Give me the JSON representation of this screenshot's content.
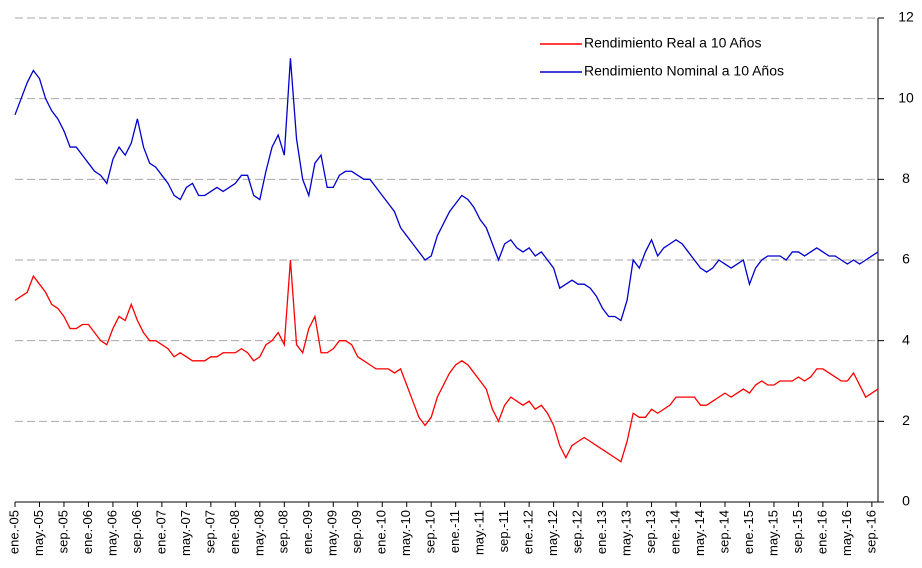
{
  "chart_data": {
    "type": "line",
    "categories": [
      "ene.-05",
      null,
      null,
      null,
      "may.-05",
      null,
      null,
      null,
      "sep.-05",
      null,
      null,
      null,
      "ene.-06",
      null,
      null,
      null,
      "may.-06",
      null,
      null,
      null,
      "sep.-06",
      null,
      null,
      null,
      "ene.-07",
      null,
      null,
      null,
      "may.-07",
      null,
      null,
      null,
      "sep.-07",
      null,
      null,
      null,
      "ene.-08",
      null,
      null,
      null,
      "may.-08",
      null,
      null,
      null,
      "sep.-08",
      null,
      null,
      null,
      "ene.-09",
      null,
      null,
      null,
      "may.-09",
      null,
      null,
      null,
      "sep.-09",
      null,
      null,
      null,
      "ene.-10",
      null,
      null,
      null,
      "may.-10",
      null,
      null,
      null,
      "sep.-10",
      null,
      null,
      null,
      "ene.-11",
      null,
      null,
      null,
      "may.-11",
      null,
      null,
      null,
      "sep.-11",
      null,
      null,
      null,
      "ene.-12",
      null,
      null,
      null,
      "may.-12",
      null,
      null,
      null,
      "sep.-12",
      null,
      null,
      null,
      "ene.-13",
      null,
      null,
      null,
      "may.-13",
      null,
      null,
      null,
      "sep.-13",
      null,
      null,
      null,
      "ene.-14",
      null,
      null,
      null,
      "may.-14",
      null,
      null,
      null,
      "sep.-14",
      null,
      null,
      null,
      "ene.-15",
      null,
      null,
      null,
      "may.-15",
      null,
      null,
      null,
      "sep.-15",
      null,
      null,
      null,
      "ene.-16",
      null,
      null,
      null,
      "may.-16",
      null,
      null,
      null,
      "sep.-16",
      null
    ],
    "series": [
      {
        "name": "Rendimiento Real a 10 Años",
        "color": "#ff0000",
        "values": [
          5.0,
          5.1,
          5.2,
          5.6,
          5.4,
          5.2,
          4.9,
          4.8,
          4.6,
          4.3,
          4.3,
          4.4,
          4.4,
          4.2,
          4.0,
          3.9,
          4.3,
          4.6,
          4.5,
          4.9,
          4.5,
          4.2,
          4.0,
          4.0,
          3.9,
          3.8,
          3.6,
          3.7,
          3.6,
          3.5,
          3.5,
          3.5,
          3.6,
          3.6,
          3.7,
          3.7,
          3.7,
          3.8,
          3.7,
          3.5,
          3.6,
          3.9,
          4.0,
          4.2,
          3.9,
          6.0,
          3.9,
          3.7,
          4.3,
          4.6,
          3.7,
          3.7,
          3.8,
          4.0,
          4.0,
          3.9,
          3.6,
          3.5,
          3.4,
          3.3,
          3.3,
          3.3,
          3.2,
          3.3,
          2.9,
          2.5,
          2.1,
          1.9,
          2.1,
          2.6,
          2.9,
          3.2,
          3.4,
          3.5,
          3.4,
          3.2,
          3.0,
          2.8,
          2.3,
          2.0,
          2.4,
          2.6,
          2.5,
          2.4,
          2.5,
          2.3,
          2.4,
          2.2,
          1.9,
          1.4,
          1.1,
          1.4,
          1.5,
          1.6,
          1.5,
          1.4,
          1.3,
          1.2,
          1.1,
          1.0,
          1.5,
          2.2,
          2.1,
          2.1,
          2.3,
          2.2,
          2.3,
          2.4,
          2.6,
          2.6,
          2.6,
          2.6,
          2.4,
          2.4,
          2.5,
          2.6,
          2.7,
          2.6,
          2.7,
          2.8,
          2.7,
          2.9,
          3.0,
          2.9,
          2.9,
          3.0,
          3.0,
          3.0,
          3.1,
          3.0,
          3.1,
          3.3,
          3.3,
          3.2,
          3.1,
          3.0,
          3.0,
          3.2,
          2.9,
          2.6,
          2.7,
          2.8
        ]
      },
      {
        "name": "Rendimiento Nominal a 10 Años",
        "color": "#0000cc",
        "values": [
          9.6,
          10.0,
          10.4,
          10.7,
          10.5,
          10.0,
          9.7,
          9.5,
          9.2,
          8.8,
          8.8,
          8.6,
          8.4,
          8.2,
          8.1,
          7.9,
          8.5,
          8.8,
          8.6,
          8.9,
          9.5,
          8.8,
          8.4,
          8.3,
          8.1,
          7.9,
          7.6,
          7.5,
          7.8,
          7.9,
          7.6,
          7.6,
          7.7,
          7.8,
          7.7,
          7.8,
          7.9,
          8.1,
          8.1,
          7.6,
          7.5,
          8.2,
          8.8,
          9.1,
          8.6,
          11.0,
          9.0,
          8.0,
          7.6,
          8.4,
          8.6,
          7.8,
          7.8,
          8.1,
          8.2,
          8.2,
          8.1,
          8.0,
          8.0,
          7.8,
          7.6,
          7.4,
          7.2,
          6.8,
          6.6,
          6.4,
          6.2,
          6.0,
          6.1,
          6.6,
          6.9,
          7.2,
          7.4,
          7.6,
          7.5,
          7.3,
          7.0,
          6.8,
          6.4,
          6.0,
          6.4,
          6.5,
          6.3,
          6.2,
          6.3,
          6.1,
          6.2,
          6.0,
          5.8,
          5.3,
          5.4,
          5.5,
          5.4,
          5.4,
          5.3,
          5.1,
          4.8,
          4.6,
          4.6,
          4.5,
          5.0,
          6.0,
          5.8,
          6.2,
          6.5,
          6.1,
          6.3,
          6.4,
          6.5,
          6.4,
          6.2,
          6.0,
          5.8,
          5.7,
          5.8,
          6.0,
          5.9,
          5.8,
          5.9,
          6.0,
          5.4,
          5.8,
          6.0,
          6.1,
          6.1,
          6.1,
          6.0,
          6.2,
          6.2,
          6.1,
          6.2,
          6.3,
          6.2,
          6.1,
          6.1,
          6.0,
          5.9,
          6.0,
          5.9,
          6.0,
          6.1,
          6.2
        ]
      }
    ],
    "ylim": [
      0,
      12
    ],
    "yticks": [
      0,
      2,
      4,
      6,
      8,
      10,
      12
    ],
    "grid": true,
    "legend": "upper right"
  }
}
